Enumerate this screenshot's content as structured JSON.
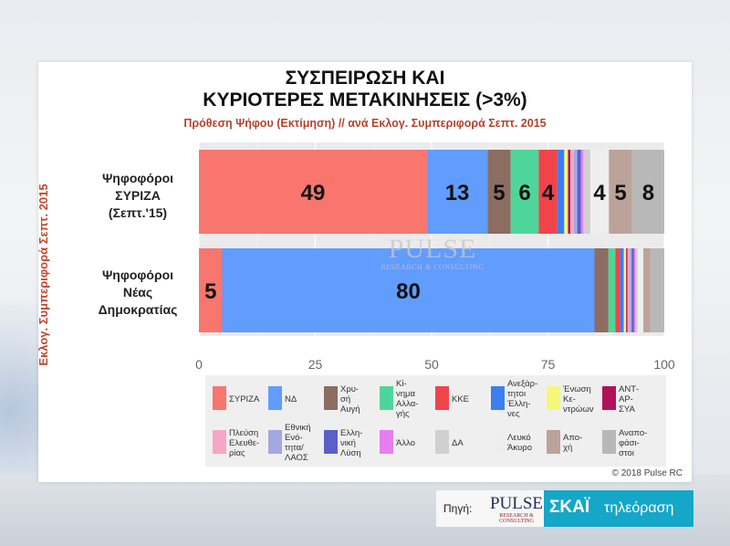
{
  "chart_data": {
    "type": "bar",
    "orientation": "horizontal",
    "stacked": true,
    "title": "ΣΥΣΠΕΙΡΩΣΗ ΚΑΙ",
    "title_line2": "ΚΥΡΙΟΤΕΡΕΣ ΜΕΤΑΚΙΝΗΣΕΙΣ (>3%)",
    "subtitle": "Πρόθεση Ψήφου (Εκτίμηση) // ανά Εκλογ. Συμπεριφορά Σεπτ. 2015",
    "ylabel": "Εκλογ. Συμπεριφορά Σεπτ. 2015",
    "xlim": [
      0,
      100
    ],
    "xticks": [
      "0",
      "25",
      "50",
      "75",
      "100"
    ],
    "categories": [
      [
        "Ψηφοφόροι",
        "ΣΥΡΙΖΑ",
        "(Σεπτ.'15)"
      ],
      [
        "Ψηφοφόροι",
        "Νέας",
        "Δημοκρατίας"
      ]
    ],
    "series": [
      {
        "name": "ΣΥΡΙΖΑ",
        "color": "#f8766d",
        "values": [
          49,
          5
        ],
        "labels": [
          "49",
          "5"
        ]
      },
      {
        "name": "ΝΔ",
        "color": "#619cff",
        "values": [
          13,
          80
        ],
        "labels": [
          "13",
          "80"
        ]
      },
      {
        "name": "Χρυσή Αυγή",
        "color": "#8c6d62",
        "values": [
          5,
          3
        ],
        "labels": [
          "5",
          ""
        ]
      },
      {
        "name": "Κίνημα Αλλαγής",
        "color": "#4ed69a",
        "values": [
          6,
          1.5
        ],
        "labels": [
          "6",
          ""
        ]
      },
      {
        "name": "ΚΚΕ",
        "color": "#f0444a",
        "values": [
          4,
          1
        ],
        "labels": [
          "4",
          ""
        ]
      },
      {
        "name": "Ανεξάρτητοι Έλληνες",
        "color": "#3d7ff0",
        "values": [
          1.5,
          0.8
        ],
        "labels": [
          "",
          ""
        ]
      },
      {
        "name": "Ένωση Κεντρώων",
        "color": "#f4f77a",
        "values": [
          0.8,
          0.5
        ],
        "labels": [
          "",
          ""
        ]
      },
      {
        "name": "ΑΝΤΑΡΣΥΑ",
        "color": "#b0125a",
        "values": [
          0.5,
          0.3
        ],
        "labels": [
          "",
          ""
        ]
      },
      {
        "name": "Πλεύση Ελευθερίας",
        "color": "#f7a6c8",
        "values": [
          0.8,
          0.5
        ],
        "labels": [
          "",
          ""
        ]
      },
      {
        "name": "Εθνική Ενότητα/ΛΑΟΣ",
        "color": "#a3a8e0",
        "values": [
          0.7,
          0.4
        ],
        "labels": [
          "",
          ""
        ]
      },
      {
        "name": "Ελληνική Λύση",
        "color": "#5a5fc9",
        "values": [
          0.8,
          0.5
        ],
        "labels": [
          "",
          ""
        ]
      },
      {
        "name": "Άλλο",
        "color": "#e67ef0",
        "values": [
          0.5,
          0.3
        ],
        "labels": [
          "",
          ""
        ]
      },
      {
        "name": "ΔΑ",
        "color": "#d0d0d0",
        "values": [
          1.5,
          0.5
        ],
        "labels": [
          "",
          ""
        ]
      },
      {
        "name": "Λευκό Άκυρο",
        "color": "#eeeeee",
        "values": [
          4,
          1.2
        ],
        "labels": [
          "4",
          ""
        ]
      },
      {
        "name": "Αποχή",
        "color": "#bba39a",
        "values": [
          5,
          1.5
        ],
        "labels": [
          "5",
          ""
        ]
      },
      {
        "name": "Αναποφάσιστοι",
        "color": "#b8b8b8",
        "values": [
          8,
          3
        ],
        "labels": [
          "8",
          ""
        ]
      }
    ],
    "legend_position": "bottom",
    "legend_entries": [
      {
        "text": "ΣΥΡΙΖΑ",
        "color": "#f8766d"
      },
      {
        "text": "ΝΔ",
        "color": "#619cff"
      },
      {
        "text": "Χρυ-\nσή\nΑυγή",
        "color": "#8c6d62"
      },
      {
        "text": "Κί-\nνημα\nΑλλα-\nγής",
        "color": "#4ed69a"
      },
      {
        "text": "ΚΚΕ",
        "color": "#f0444a"
      },
      {
        "text": "Ανεξάρ-\nτητοι\nΈλλη-\nνες",
        "color": "#3d7ff0"
      },
      {
        "text": "Ένωση\nΚε-\nντρώων",
        "color": "#f4f77a"
      },
      {
        "text": "ΑΝΤ-\nΑΡ-\nΣΥΑ",
        "color": "#b0125a"
      },
      {
        "text": "Πλεύση\nΕλευθε-\nρίας",
        "color": "#f7a6c8"
      },
      {
        "text": "Εθνική\nΕνό-\nτητα/\nΛΑΟΣ",
        "color": "#a3a8e0"
      },
      {
        "text": "Ελλη-\nνική\nΛύση",
        "color": "#5a5fc9"
      },
      {
        "text": "Άλλο",
        "color": "#e67ef0"
      },
      {
        "text": "ΔΑ",
        "color": "#d0d0d0"
      },
      {
        "text": "Λευκό\nΆκυρο",
        "color": "#eeeeee"
      },
      {
        "text": "Απο-\nχή",
        "color": "#bba39a"
      },
      {
        "text": "Αναπο-\nφάσι-\nστοι",
        "color": "#b8b8b8"
      }
    ]
  },
  "watermark": {
    "line1": "PULSE",
    "line2": "RESEARCH & CONSULTING"
  },
  "copyright": "© 2018 Pulse RC",
  "source": {
    "label": "Πηγή:",
    "pulse": "PULSE",
    "pulse_sub": "RESEARCH & CONSULTING",
    "skai": "ΣΚΑΪ",
    "skai_tv": "τηλεόραση"
  }
}
